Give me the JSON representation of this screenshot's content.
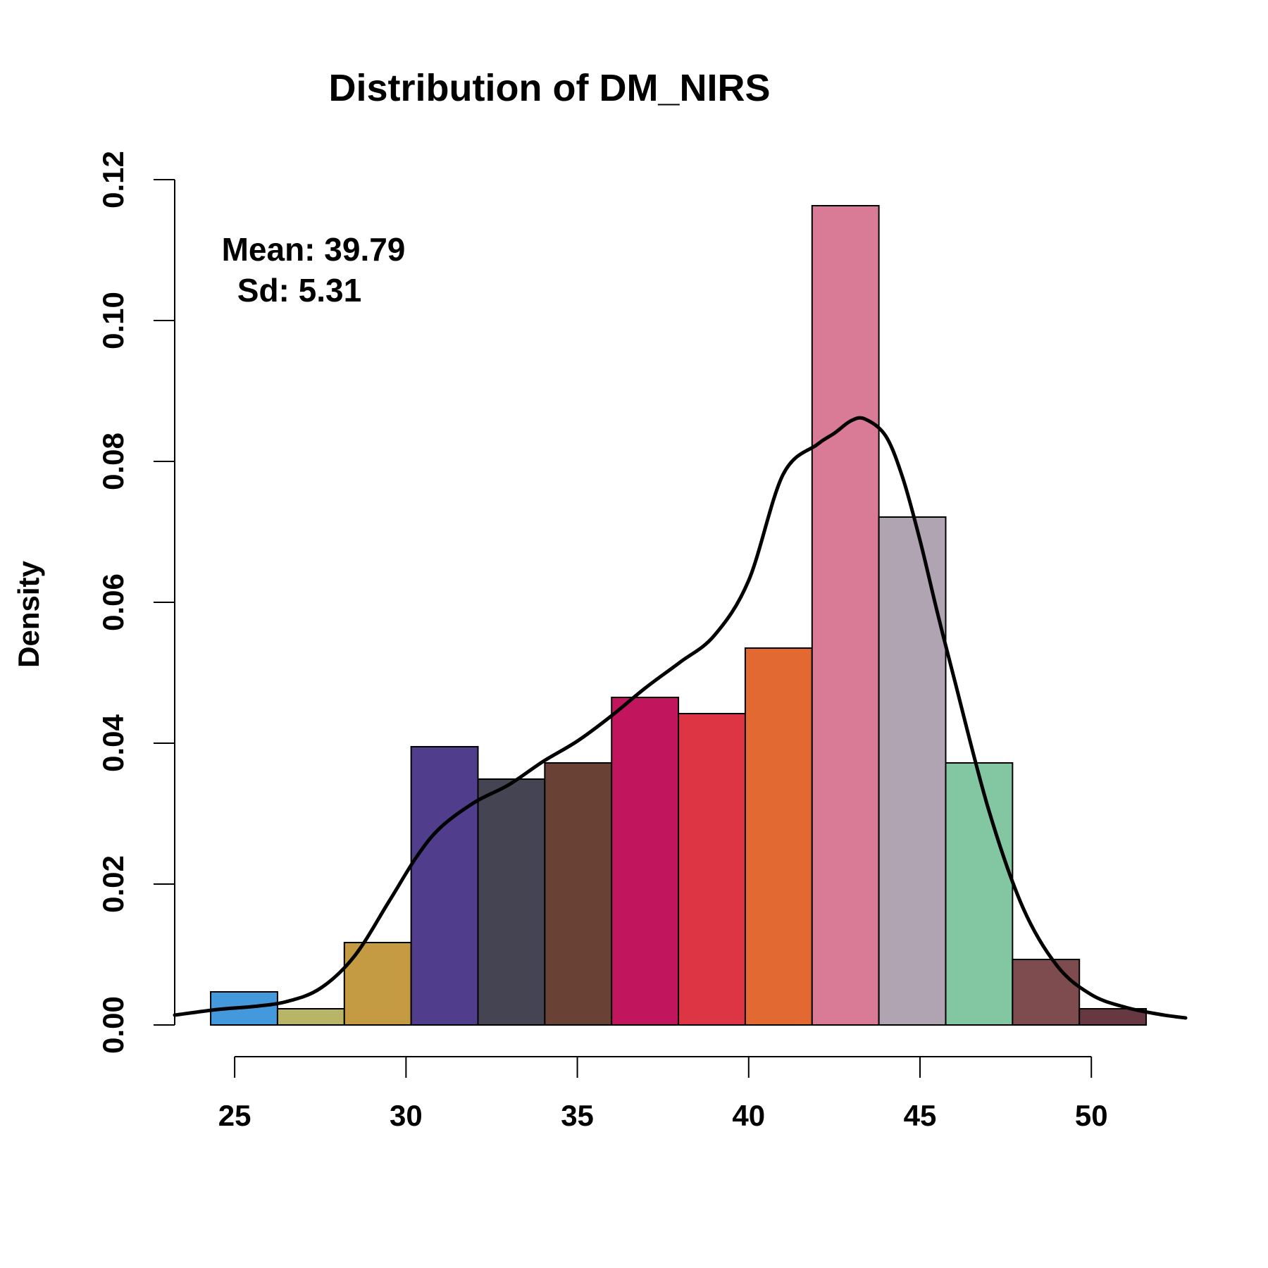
{
  "chart_data": {
    "type": "bar",
    "title": "Distribution of DM_NIRS",
    "xlabel": "",
    "ylabel": "Density",
    "xlim": [
      23.25,
      52.75
    ],
    "ylim": [
      0,
      0.12
    ],
    "x_ticks": [
      "25",
      "30",
      "35",
      "40",
      "45",
      "50"
    ],
    "y_ticks": [
      "0.00",
      "0.02",
      "0.04",
      "0.06",
      "0.08",
      "0.10",
      "0.12"
    ],
    "annotations": [
      "Mean: 39.79",
      "Sd: 5.31"
    ],
    "bins": [
      {
        "start": 24.3,
        "end": 26.25,
        "density": 0.0047,
        "color": "#4499DD"
      },
      {
        "start": 26.25,
        "end": 28.2,
        "density": 0.0023,
        "color": "#B8B566"
      },
      {
        "start": 28.2,
        "end": 30.15,
        "density": 0.0117,
        "color": "#C49A42"
      },
      {
        "start": 30.15,
        "end": 32.1,
        "density": 0.0395,
        "color": "#503E8D"
      },
      {
        "start": 32.1,
        "end": 34.05,
        "density": 0.0349,
        "color": "#454452"
      },
      {
        "start": 34.05,
        "end": 36.0,
        "density": 0.0372,
        "color": "#6A4235"
      },
      {
        "start": 36.0,
        "end": 37.95,
        "density": 0.0465,
        "color": "#C1165E"
      },
      {
        "start": 37.95,
        "end": 39.9,
        "density": 0.0442,
        "color": "#DE3545"
      },
      {
        "start": 39.9,
        "end": 41.85,
        "density": 0.0535,
        "color": "#E26A32"
      },
      {
        "start": 41.85,
        "end": 43.8,
        "density": 0.1163,
        "color": "#D97A96"
      },
      {
        "start": 43.8,
        "end": 45.75,
        "density": 0.0721,
        "color": "#B1A4B2"
      },
      {
        "start": 45.75,
        "end": 47.7,
        "density": 0.0372,
        "color": "#82C6A2"
      },
      {
        "start": 47.7,
        "end": 49.65,
        "density": 0.0093,
        "color": "#7E4C4F"
      },
      {
        "start": 49.65,
        "end": 51.6,
        "density": 0.0023,
        "color": "#683842"
      }
    ],
    "density_curve": {
      "x": [
        23.25,
        24.5,
        25.5,
        26.5,
        27.5,
        28.5,
        29.5,
        30.3,
        31.0,
        32.0,
        33.0,
        34.0,
        35.0,
        36.0,
        37.0,
        38.0,
        39.0,
        40.0,
        41.0,
        42.0,
        42.5,
        43.0,
        43.4,
        44.0,
        44.5,
        45.0,
        45.5,
        46.0,
        47.0,
        48.0,
        49.0,
        50.0,
        51.0,
        52.0,
        52.75
      ],
      "y": [
        0.0014,
        0.0022,
        0.0026,
        0.0033,
        0.0052,
        0.0098,
        0.0175,
        0.0238,
        0.028,
        0.0316,
        0.0341,
        0.0374,
        0.0403,
        0.0439,
        0.0479,
        0.0515,
        0.0553,
        0.0631,
        0.0781,
        0.0824,
        0.084,
        0.0858,
        0.086,
        0.0836,
        0.0776,
        0.0688,
        0.0587,
        0.0491,
        0.0306,
        0.0167,
        0.0084,
        0.0043,
        0.0025,
        0.0015,
        0.001
      ]
    },
    "colors": {
      "curve": "#000000",
      "bar_border": "#000000",
      "axis": "#000000"
    },
    "grid": false,
    "legend": "none"
  }
}
